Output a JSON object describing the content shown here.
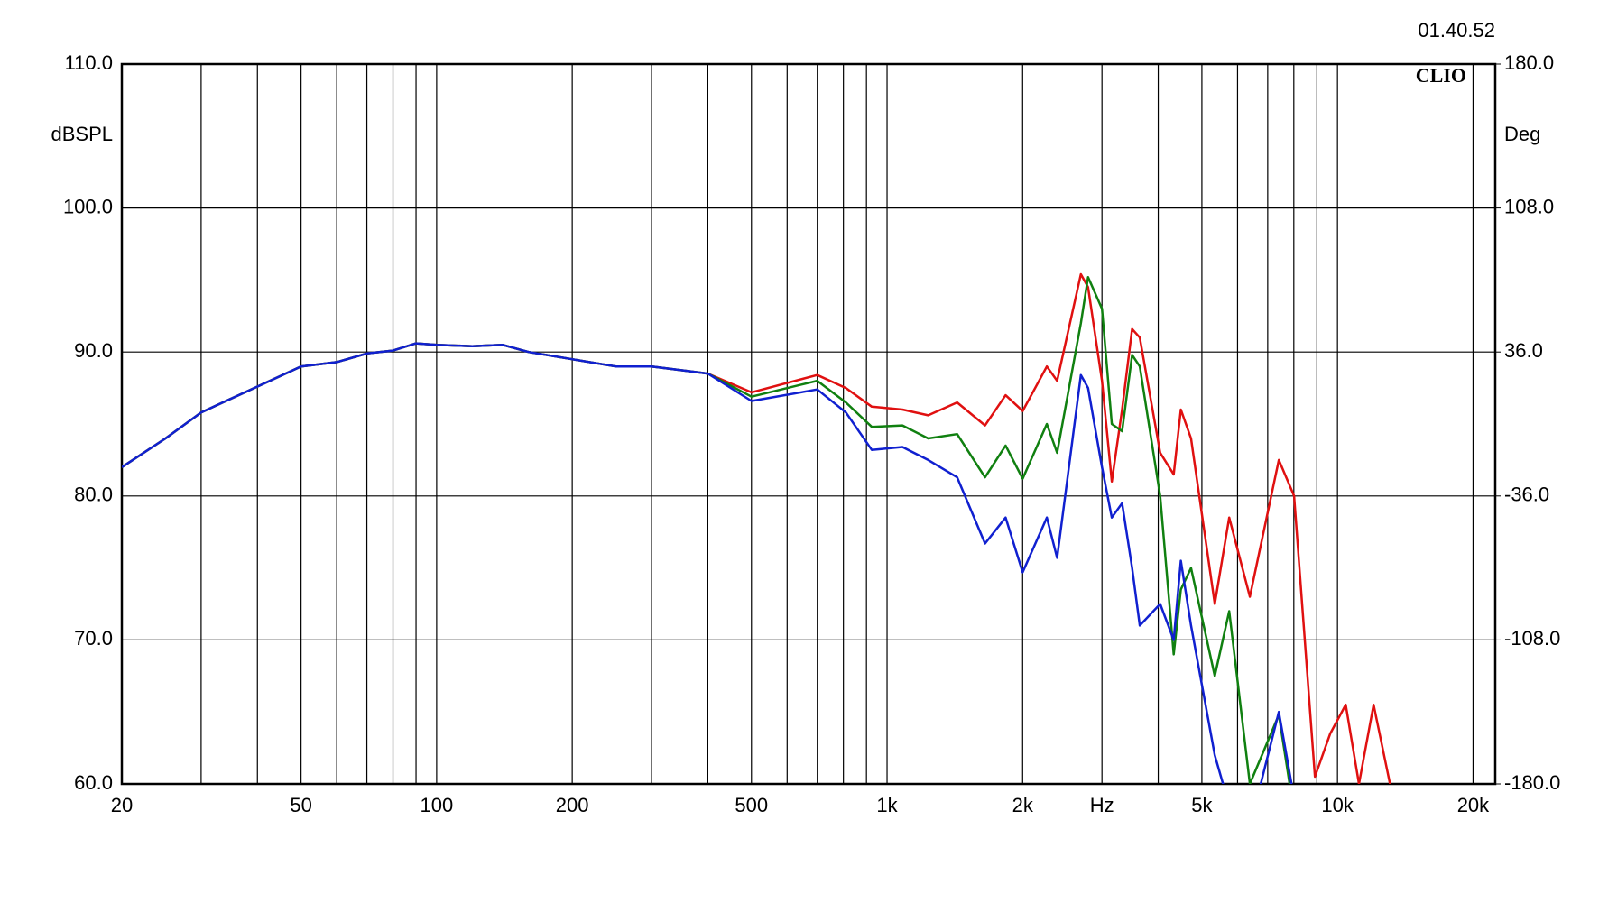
{
  "chart_data": {
    "type": "line",
    "annotations": [
      "01.40.52",
      "CLIO"
    ],
    "ylabel": "dBSPL",
    "y2label": "Deg",
    "xscale": "log",
    "grid": true,
    "xlim": [
      20,
      22400
    ],
    "xticks": [
      20,
      50,
      100,
      200,
      500,
      {
        "value": 1000,
        "label": "1k"
      },
      {
        "value": 2000,
        "label": "2k"
      },
      {
        "value": 3000,
        "label": "Hz"
      },
      {
        "value": 5000,
        "label": "5k"
      },
      {
        "value": 10000,
        "label": "10k"
      },
      {
        "value": 20000,
        "label": "20k"
      }
    ],
    "xminor": [
      30,
      40,
      60,
      70,
      80,
      90,
      300,
      400,
      600,
      700,
      800,
      900,
      4000,
      6000,
      7000,
      8000,
      9000
    ],
    "ylim": [
      60,
      110
    ],
    "yticks": [
      {
        "value": 60,
        "label": "60.0"
      },
      {
        "value": 70,
        "label": "70.0"
      },
      {
        "value": 80,
        "label": "80.0"
      },
      {
        "value": 90,
        "label": "90.0"
      },
      {
        "value": 100,
        "label": "100.0"
      },
      {
        "value": 110,
        "label": "110.0"
      }
    ],
    "y2lim": [
      -180,
      180
    ],
    "y2ticks": [
      {
        "value": -180,
        "label": "-180.0"
      },
      {
        "value": -108,
        "label": "-108.0"
      },
      {
        "value": -36,
        "label": "-36.0"
      },
      {
        "value": 36,
        "label": "36.0"
      },
      {
        "value": 108,
        "label": "108.0"
      },
      {
        "value": 180,
        "label": "180.0"
      }
    ],
    "x": [
      20,
      25,
      30,
      40,
      50,
      60,
      70,
      80,
      90,
      100,
      120,
      140,
      160,
      200,
      250,
      300,
      400,
      500,
      700,
      810,
      925,
      1082,
      1234,
      1431,
      1650,
      1833,
      2000,
      2263,
      2385,
      2693,
      2794,
      3000,
      3155,
      3325,
      3500,
      3640,
      4040,
      4330,
      4490,
      4730,
      5340,
      5750,
      6390,
      7410,
      8010,
      8910,
      9640,
      10430,
      11160,
      12030,
      13080
    ],
    "series": [
      {
        "name": null,
        "color": "#e01010",
        "values": [
          82.0,
          84.0,
          85.8,
          87.6,
          89.0,
          89.3,
          89.9,
          90.1,
          90.6,
          90.5,
          90.4,
          90.5,
          90.0,
          89.5,
          89.0,
          89.0,
          88.5,
          87.2,
          88.4,
          87.5,
          86.2,
          86.0,
          85.6,
          86.5,
          84.9,
          87.0,
          85.9,
          89.0,
          88.0,
          95.4,
          94.5,
          88.0,
          81.0,
          86.0,
          91.6,
          91.0,
          83.0,
          81.5,
          86.0,
          84.0,
          72.5,
          78.5,
          73.0,
          82.5,
          80.0,
          60.5,
          63.5,
          65.5,
          60.0,
          65.5,
          60.0
        ]
      },
      {
        "name": null,
        "color": "#108010",
        "values": [
          82.0,
          84.0,
          85.8,
          87.6,
          89.0,
          89.3,
          89.9,
          90.1,
          90.6,
          90.5,
          90.4,
          90.5,
          90.0,
          89.5,
          89.0,
          89.0,
          88.5,
          86.9,
          88.0,
          86.5,
          84.8,
          84.9,
          84.0,
          84.3,
          81.3,
          83.5,
          81.2,
          85.0,
          83.0,
          92.0,
          95.2,
          93.0,
          85.0,
          84.5,
          89.8,
          89.0,
          80.0,
          69.0,
          73.5,
          75.0,
          67.5,
          72.0,
          60.0,
          64.8,
          58.0,
          null,
          null,
          null,
          null,
          null,
          null
        ]
      },
      {
        "name": null,
        "color": "#1020d0",
        "values": [
          82.0,
          84.0,
          85.8,
          87.6,
          89.0,
          89.3,
          89.9,
          90.1,
          90.6,
          90.5,
          90.4,
          90.5,
          90.0,
          89.5,
          89.0,
          89.0,
          88.5,
          86.6,
          87.4,
          85.8,
          83.2,
          83.4,
          82.5,
          81.3,
          76.7,
          78.5,
          74.7,
          78.5,
          75.7,
          88.4,
          87.5,
          82.0,
          78.5,
          79.5,
          75.0,
          71.0,
          72.5,
          70.0,
          75.5,
          71.0,
          62.0,
          58.5,
          57.0,
          65.0,
          59.0,
          null,
          null,
          null,
          null,
          null,
          null
        ]
      }
    ]
  }
}
